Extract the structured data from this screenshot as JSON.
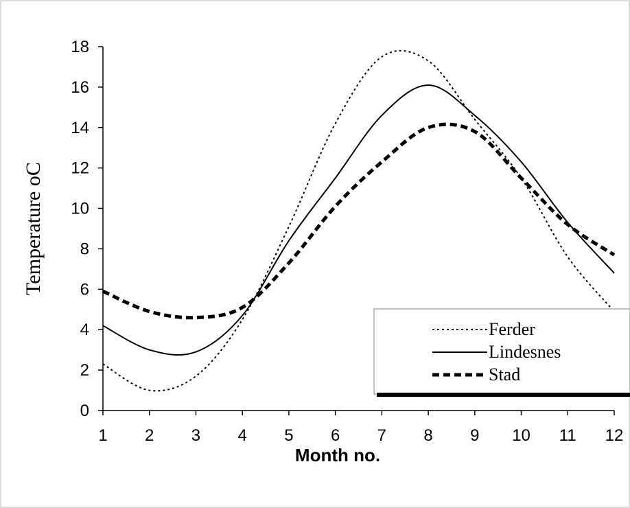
{
  "chart_data": {
    "type": "line",
    "x_label": "Month no.",
    "y_label": "Temperature oC",
    "x": [
      1,
      2,
      3,
      4,
      5,
      6,
      7,
      8,
      9,
      10,
      11,
      12
    ],
    "series": [
      {
        "name": "Ferder",
        "color": "#000000",
        "style": "dotted",
        "values": [
          2.3,
          1.0,
          1.7,
          4.5,
          9.1,
          14.2,
          17.5,
          17.3,
          14.4,
          11.5,
          7.6,
          4.9
        ]
      },
      {
        "name": "Lindesnes",
        "color": "#000000",
        "style": "solid",
        "values": [
          4.2,
          3.0,
          2.9,
          4.7,
          8.4,
          11.5,
          14.6,
          16.1,
          14.6,
          12.3,
          9.3,
          6.8
        ]
      },
      {
        "name": "Stad",
        "color": "#000000",
        "style": "dashed",
        "values": [
          5.9,
          4.9,
          4.6,
          5.1,
          7.3,
          10.1,
          12.3,
          14.0,
          13.8,
          11.5,
          9.2,
          7.7
        ]
      }
    ],
    "xlim": [
      1,
      12
    ],
    "xticks": [
      1,
      2,
      3,
      4,
      5,
      6,
      7,
      8,
      9,
      10,
      11,
      12
    ],
    "ylim": [
      0,
      18
    ],
    "yticks": [
      0,
      2,
      4,
      6,
      8,
      10,
      12,
      14,
      16,
      18
    ],
    "legend": "lower right"
  }
}
